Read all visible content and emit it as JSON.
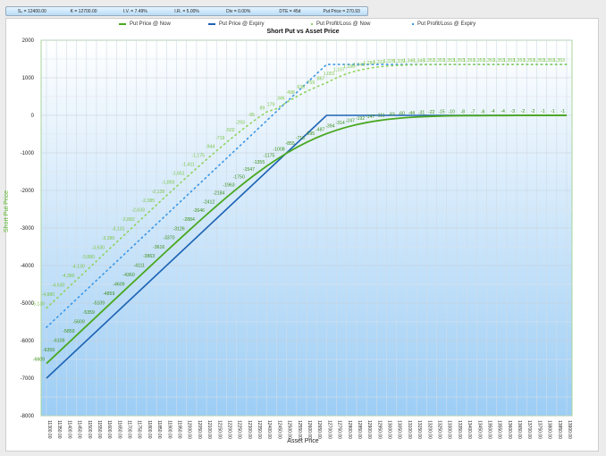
{
  "params": {
    "items": [
      "S₀ = 12400.00",
      "K = 12700.00",
      "I.V. = 7.49%",
      "I.R. = 5.00%",
      "Div = 0.00%",
      "DTE = 45d",
      "Put Price = 270.93"
    ]
  },
  "legend": {
    "items": [
      {
        "label": "Put Price @ Now",
        "color": "#4aa820",
        "style": "solid"
      },
      {
        "label": "Put Price @ Expiry",
        "color": "#1e64b4",
        "style": "solid"
      },
      {
        "label": "Put Profit/Loss @ Now",
        "color": "#8fd35a",
        "style": "dotted"
      },
      {
        "label": "Put Profit/Loss @ Expiry",
        "color": "#3a96e6",
        "style": "dotted"
      }
    ]
  },
  "chart_data": {
    "type": "line",
    "title": "Short Put vs Asset Price",
    "xlabel": "Asset Price",
    "ylabel": "Short Put Price",
    "ylim": [
      -8000,
      2000
    ],
    "yticks": [
      2000,
      1000,
      0,
      -1000,
      -2000,
      -3000,
      -4000,
      -5000,
      -6000,
      -7000,
      -8000
    ],
    "x": [
      11300,
      11350,
      11400,
      11450,
      11500,
      11550,
      11600,
      11650,
      11700,
      11750,
      11800,
      11850,
      11900,
      11950,
      12000,
      12050,
      12100,
      12150,
      12200,
      12250,
      12300,
      12350,
      12400,
      12450,
      12500,
      12550,
      12600,
      12650,
      12700,
      12750,
      12800,
      12850,
      12900,
      12950,
      13000,
      13050,
      13100,
      13150,
      13200,
      13250,
      13300,
      13350,
      13400,
      13450,
      13500,
      13550,
      13600,
      13650,
      13700,
      13750,
      13800,
      13850,
      13900
    ],
    "series": [
      {
        "name": "Put Price @ Now",
        "values": [
          -6609,
          -6359,
          -6109,
          -5859,
          -5609,
          -5359,
          -5109,
          -4859,
          -4609,
          -4360,
          -4111,
          -3863,
          -3616,
          -3370,
          -3126,
          -2884,
          -2646,
          -2412,
          -2184,
          -1963,
          -1750,
          -1547,
          -1355,
          -1175,
          -1008,
          -855,
          -718,
          -595,
          -487,
          -394,
          -314,
          -247,
          -192,
          -147,
          -111,
          -83,
          -60,
          -44,
          -31,
          -22,
          -15,
          -10,
          -8,
          -7,
          -6,
          -4,
          -4,
          -3,
          -2,
          -2,
          -1,
          -1,
          -1
        ]
      },
      {
        "name": "Put Price @ Expiry",
        "values": [
          -7000,
          -6750,
          -6500,
          -6250,
          -6000,
          -5750,
          -5500,
          -5250,
          -5000,
          -4750,
          -4500,
          -4250,
          -4000,
          -3750,
          -3500,
          -3250,
          -3000,
          -2750,
          -2500,
          -2250,
          -2000,
          -1750,
          -1500,
          -1250,
          -1000,
          -750,
          -500,
          -250,
          0,
          0,
          0,
          0,
          0,
          0,
          0,
          0,
          0,
          0,
          0,
          0,
          0,
          0,
          0,
          0,
          0,
          0,
          0,
          0,
          0,
          0,
          0,
          0,
          0
        ]
      },
      {
        "name": "Put Profit/Loss @ Now",
        "values": [
          -5130,
          -4880,
          -4630,
          -4380,
          -4130,
          -3880,
          -3630,
          -3380,
          -3131,
          -2882,
          -2633,
          -2385,
          -2139,
          -1893,
          -1651,
          -1411,
          -1175,
          -944,
          -719,
          -502,
          -293,
          -95,
          89,
          179,
          346,
          498,
          638,
          759,
          867,
          1001,
          1107,
          1186,
          1243,
          1283,
          1310,
          1328,
          1339,
          1346,
          1349,
          1352,
          1353,
          1353,
          1353,
          1353,
          1353,
          1353,
          1353,
          1353,
          1353,
          1353,
          1353,
          1353,
          1353
        ]
      },
      {
        "name": "Put Profit/Loss @ Expiry",
        "values": [
          -5645,
          -5395,
          -5145,
          -4895,
          -4645,
          -4395,
          -4145,
          -3895,
          -3645,
          -3395,
          -3145,
          -2895,
          -2645,
          -2395,
          -2145,
          -1895,
          -1645,
          -1395,
          -1145,
          -895,
          -645,
          -395,
          -145,
          105,
          355,
          605,
          855,
          1105,
          1355,
          1355,
          1355,
          1355,
          1355,
          1355,
          1355,
          1355,
          1355,
          1355,
          1355,
          1355,
          1355,
          1355,
          1355,
          1355,
          1355,
          1355,
          1355,
          1355,
          1355,
          1355,
          1355,
          1355,
          1355
        ]
      }
    ],
    "grid": true,
    "legend_position": "top"
  }
}
